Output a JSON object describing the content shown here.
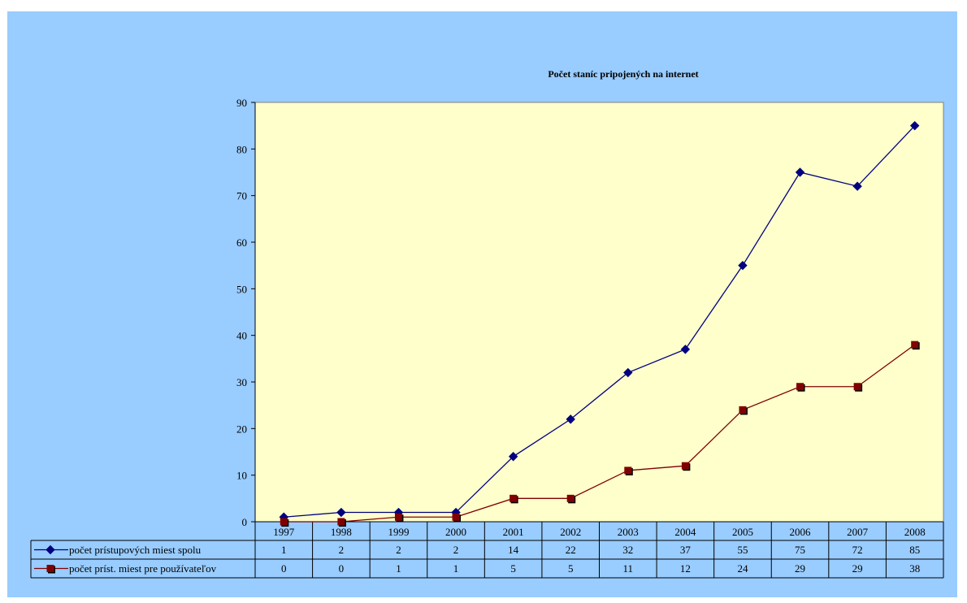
{
  "chart_data": {
    "type": "line",
    "title": "Počet staníc pripojených na internet",
    "categories": [
      "1997",
      "1998",
      "1999",
      "2000",
      "2001",
      "2002",
      "2003",
      "2004",
      "2005",
      "2006",
      "2007",
      "2008"
    ],
    "ylim": [
      0,
      90
    ],
    "yticks": [
      0,
      10,
      20,
      30,
      40,
      50,
      60,
      70,
      80,
      90
    ],
    "grid": false,
    "legend_placement": "data-table",
    "series": [
      {
        "name": "počet prístupových miest spolu",
        "values": [
          1,
          2,
          2,
          2,
          14,
          22,
          32,
          37,
          55,
          75,
          72,
          85
        ],
        "color": "#000080",
        "marker": "diamond"
      },
      {
        "name": "počet príst. miest pre používateľov",
        "values": [
          0,
          0,
          1,
          1,
          5,
          5,
          11,
          12,
          24,
          29,
          29,
          38
        ],
        "color": "#800000",
        "marker": "square"
      }
    ],
    "colors": {
      "chart_background": "#99ccff",
      "plot_background": "#ffffcc"
    }
  }
}
